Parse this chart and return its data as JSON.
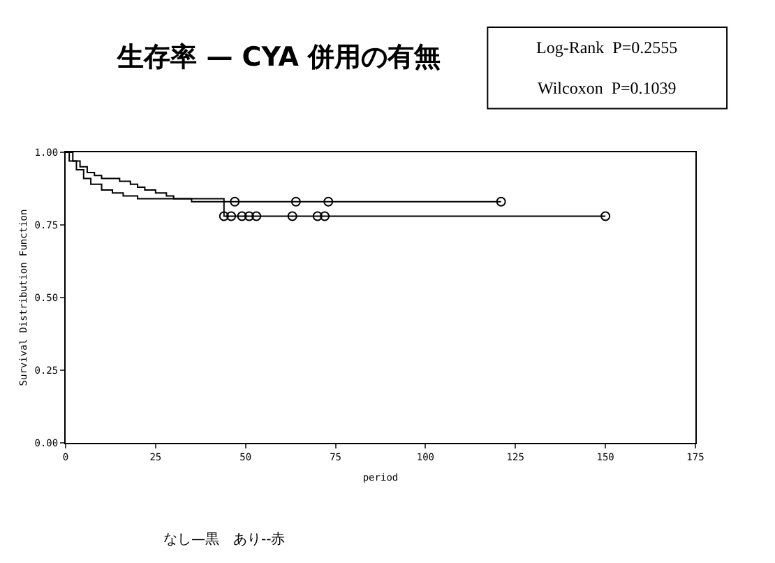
{
  "chart_data": {
    "type": "step",
    "title": "生存率 — CYA 併用の有無",
    "xlabel": "period",
    "ylabel": "Survival Distribution Function",
    "annotations": [
      "Log-Rank  P=0.2555",
      "Wilcoxon  P=0.1039",
      "なし—黒　あり--赤"
    ],
    "xlim": [
      0,
      175
    ],
    "xticks": [
      0,
      25,
      50,
      75,
      100,
      125,
      150,
      175
    ],
    "ylim": [
      0,
      1
    ],
    "yticks": [
      {
        "value": 0,
        "label": "0.00"
      },
      {
        "value": 0.25,
        "label": "0.25"
      },
      {
        "value": 0.5,
        "label": "0.50"
      },
      {
        "value": 0.75,
        "label": "0.75"
      },
      {
        "value": 1,
        "label": "1.00"
      }
    ],
    "grid": false,
    "series": [
      {
        "color": "#000000",
        "x": [
          0,
          2,
          4,
          6,
          8,
          10,
          15,
          18,
          20,
          22,
          25,
          28,
          30,
          35,
          121
        ],
        "values": [
          1,
          0.97,
          0.95,
          0.93,
          0.92,
          0.91,
          0.9,
          0.89,
          0.88,
          0.87,
          0.86,
          0.85,
          0.84,
          0.83,
          0.83
        ]
      },
      {
        "color": "#000000",
        "x": [
          0,
          1,
          3,
          5,
          7,
          10,
          13,
          16,
          20,
          44,
          150
        ],
        "values": [
          1,
          0.97,
          0.94,
          0.91,
          0.89,
          0.87,
          0.86,
          0.85,
          0.84,
          0.78,
          0.78
        ]
      },
      {
        "type": "scatter",
        "marker": "circle",
        "color": "#000000",
        "x": [
          47,
          64,
          73,
          121
        ],
        "values": [
          0.83,
          0.83,
          0.83,
          0.83
        ]
      },
      {
        "type": "scatter",
        "marker": "circle",
        "color": "#000000",
        "x": [
          44,
          46,
          49,
          51,
          53,
          63,
          70,
          72,
          150
        ],
        "values": [
          0.78,
          0.78,
          0.78,
          0.78,
          0.78,
          0.78,
          0.78,
          0.78,
          0.78
        ]
      }
    ]
  }
}
